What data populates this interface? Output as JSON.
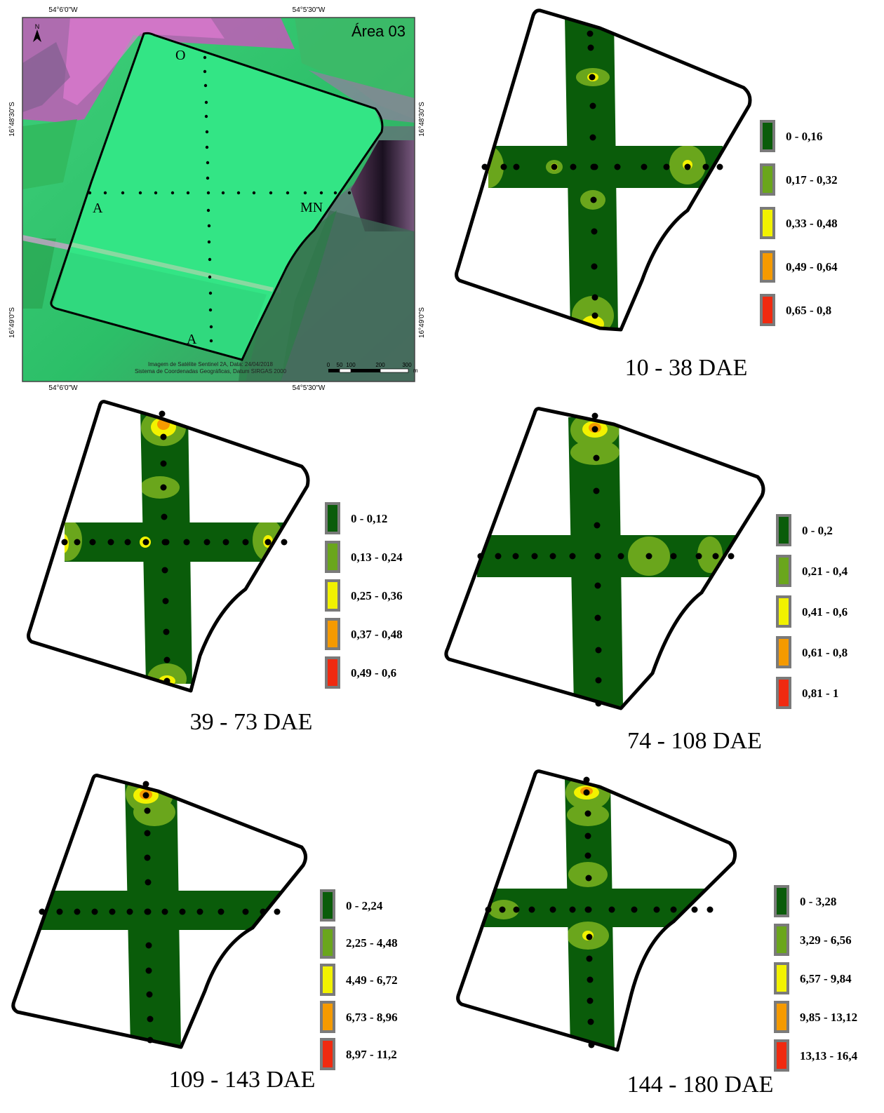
{
  "satellite": {
    "area_title": "Área 03",
    "north_label": "N",
    "coord_top_left": "54°6'0\"W",
    "coord_top_right": "54°5'30\"W",
    "coord_bottom_left": "54°6'0\"W",
    "coord_bottom_right": "54°5'30\"W",
    "coord_left_upper": "16°48'30\"S",
    "coord_left_lower": "16°49'0\"S",
    "coord_right_upper": "16°48'30\"S",
    "coord_right_lower": "16°49'0\"S",
    "label_o": "O",
    "label_a_left": "A",
    "label_mn": "MN",
    "label_a_bottom": "A",
    "credit_line1": "Imagem de Satélite Sentinel 2A, Data: 24/04/2018",
    "credit_line2": "Sistema de Coordenadas Geográficas, Datum SIRGAS 2000",
    "scale_labels": [
      "0",
      "50",
      "100",
      "200",
      "300"
    ],
    "scale_unit": "m"
  },
  "panels": [
    {
      "caption": "10 - 38 DAE",
      "legend": [
        {
          "label": "0 - 0,16",
          "color": "#0a5c0a"
        },
        {
          "label": "0,17 - 0,32",
          "color": "#6aa61c"
        },
        {
          "label": "0,33 - 0,48",
          "color": "#f2f200"
        },
        {
          "label": "0,49 - 0,64",
          "color": "#f59a00"
        },
        {
          "label": "0,65 - 0,8",
          "color": "#f02a10"
        }
      ]
    },
    {
      "caption": "39 - 73 DAE",
      "legend": [
        {
          "label": "0 - 0,12",
          "color": "#0a5c0a"
        },
        {
          "label": "0,13 - 0,24",
          "color": "#6aa61c"
        },
        {
          "label": "0,25 - 0,36",
          "color": "#f2f200"
        },
        {
          "label": "0,37 - 0,48",
          "color": "#f59a00"
        },
        {
          "label": "0,49 - 0,6",
          "color": "#f02a10"
        }
      ]
    },
    {
      "caption": "74 - 108 DAE",
      "legend": [
        {
          "label": "0 - 0,2",
          "color": "#0a5c0a"
        },
        {
          "label": "0,21 - 0,4",
          "color": "#6aa61c"
        },
        {
          "label": "0,41 - 0,6",
          "color": "#f2f200"
        },
        {
          "label": "0,61 - 0,8",
          "color": "#f59a00"
        },
        {
          "label": "0,81 - 1",
          "color": "#f02a10"
        }
      ]
    },
    {
      "caption": "109 - 143 DAE",
      "legend": [
        {
          "label": "0 - 2,24",
          "color": "#0a5c0a"
        },
        {
          "label": "2,25 - 4,48",
          "color": "#6aa61c"
        },
        {
          "label": "4,49 - 6,72",
          "color": "#f2f200"
        },
        {
          "label": "6,73 - 8,96",
          "color": "#f59a00"
        },
        {
          "label": "8,97 - 11,2",
          "color": "#f02a10"
        }
      ]
    },
    {
      "caption": "144 - 180 DAE",
      "legend": [
        {
          "label": "0 - 3,28",
          "color": "#0a5c0a"
        },
        {
          "label": "3,29 - 6,56",
          "color": "#6aa61c"
        },
        {
          "label": "6,57 - 9,84",
          "color": "#f2f200"
        },
        {
          "label": "9,85 - 13,12",
          "color": "#f59a00"
        },
        {
          "label": "13,13 - 16,4",
          "color": "#f02a10"
        }
      ]
    }
  ]
}
